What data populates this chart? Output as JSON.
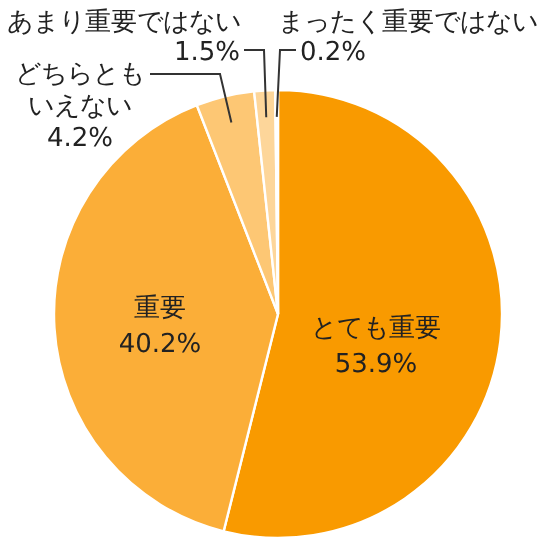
{
  "chart_data": {
    "type": "pie",
    "categories": [
      "とても重要",
      "重要",
      "どちらともいえない",
      "あまり重要ではない",
      "まったく重要ではない"
    ],
    "values": [
      53.9,
      40.2,
      4.2,
      1.5,
      0.2
    ],
    "colors": [
      "#f99a00",
      "#fbae38",
      "#fdc774",
      "#fdd69a",
      "#fee8c8"
    ],
    "value_labels": [
      "53.9%",
      "40.2%",
      "4.2%",
      "1.5%",
      "0.2%"
    ]
  }
}
